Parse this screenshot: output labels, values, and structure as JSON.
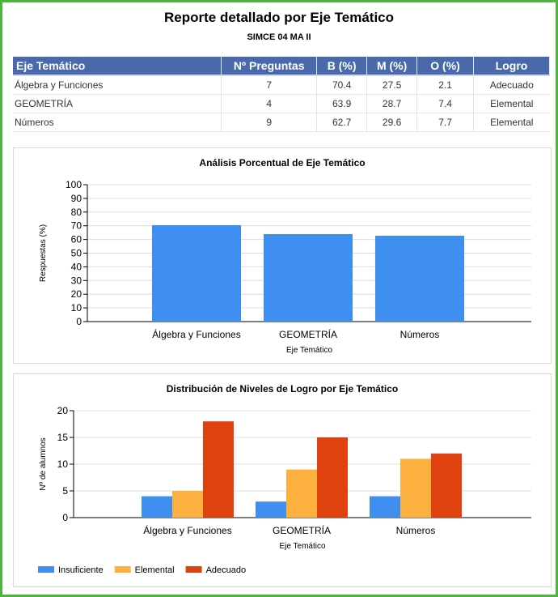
{
  "report": {
    "title": "Reporte detallado por Eje Temático",
    "subtitle": "SIMCE 04 MA II"
  },
  "table": {
    "headers": [
      "Eje Temático",
      "Nº Preguntas",
      "B (%)",
      "M (%)",
      "O (%)",
      "Logro"
    ],
    "rows": [
      [
        "Álgebra y Funciones",
        "7",
        "70.4",
        "27.5",
        "2.1",
        "Adecuado"
      ],
      [
        "GEOMETRÍA",
        "4",
        "63.9",
        "28.7",
        "7.4",
        "Elemental"
      ],
      [
        "Números",
        "9",
        "62.7",
        "29.6",
        "7.7",
        "Elemental"
      ]
    ]
  },
  "chart_data": [
    {
      "type": "bar",
      "title": "Análisis Porcentual de Eje Temático",
      "xlabel": "Eje Temático",
      "ylabel": "Respuestas (%)",
      "categories": [
        "Álgebra y Funciones",
        "GEOMETRÍA",
        "Números"
      ],
      "values": [
        70.4,
        63.9,
        62.7
      ],
      "ylim": [
        0,
        100
      ],
      "yticks": [
        0,
        10,
        20,
        30,
        40,
        50,
        60,
        70,
        80,
        90,
        100
      ],
      "grid": true,
      "color": "#3f8ff0"
    },
    {
      "type": "bar",
      "title": "Distribución de Niveles de Logro por Eje Temático",
      "xlabel": "Eje Temático",
      "ylabel": "Nº de alumnos",
      "categories": [
        "Álgebra y Funciones",
        "GEOMETRÍA",
        "Números"
      ],
      "series": [
        {
          "name": "Insuficiente",
          "values": [
            4,
            3,
            4
          ],
          "color": "#3f8ff0"
        },
        {
          "name": "Elemental",
          "values": [
            5,
            9,
            11
          ],
          "color": "#fbb040"
        },
        {
          "name": "Adecuado",
          "values": [
            18,
            15,
            12
          ],
          "color": "#e0420f"
        }
      ],
      "ylim": [
        0,
        20
      ],
      "yticks": [
        0,
        5,
        10,
        15,
        20
      ],
      "grid": true,
      "legend": "bottom-left"
    }
  ]
}
